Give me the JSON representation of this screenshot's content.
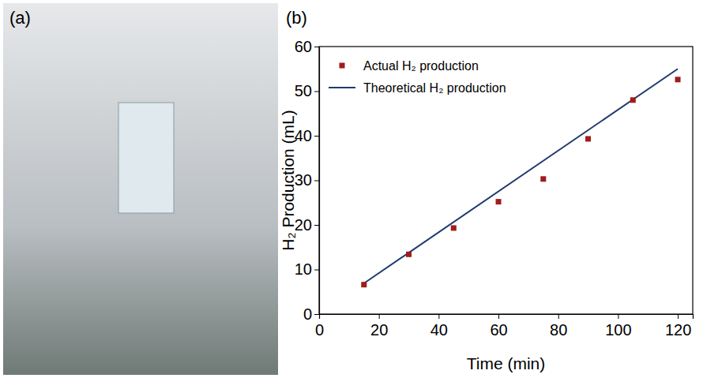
{
  "chart_data": {
    "type": "scatter",
    "annotations": [
      "(b)"
    ],
    "x_label": "Time (min)",
    "y_label": "H₂ Production (mL)",
    "xlim": [
      0,
      125
    ],
    "xticks": [
      0,
      20,
      40,
      60,
      80,
      100,
      120
    ],
    "ylim": [
      0,
      60
    ],
    "yticks": [
      0,
      10,
      20,
      30,
      40,
      50,
      60
    ],
    "legend": "top-left",
    "grid": false,
    "series": [
      {
        "name": "Actual H₂ production",
        "type": "scatter",
        "marker": "square",
        "color": "#a01c1c",
        "x": [
          15,
          30,
          45,
          60,
          75,
          90,
          105,
          120
        ],
        "values": [
          6.6,
          13.4,
          19.3,
          25.2,
          30.3,
          39.3,
          48.0,
          52.6
        ]
      },
      {
        "name": "Theoretical H₂ production",
        "type": "line",
        "line_style": "solid",
        "color": "#1f3b6e",
        "x": [
          15,
          120
        ],
        "values": [
          6.9,
          55.0
        ]
      }
    ]
  },
  "photo": {
    "label": "(a)"
  }
}
